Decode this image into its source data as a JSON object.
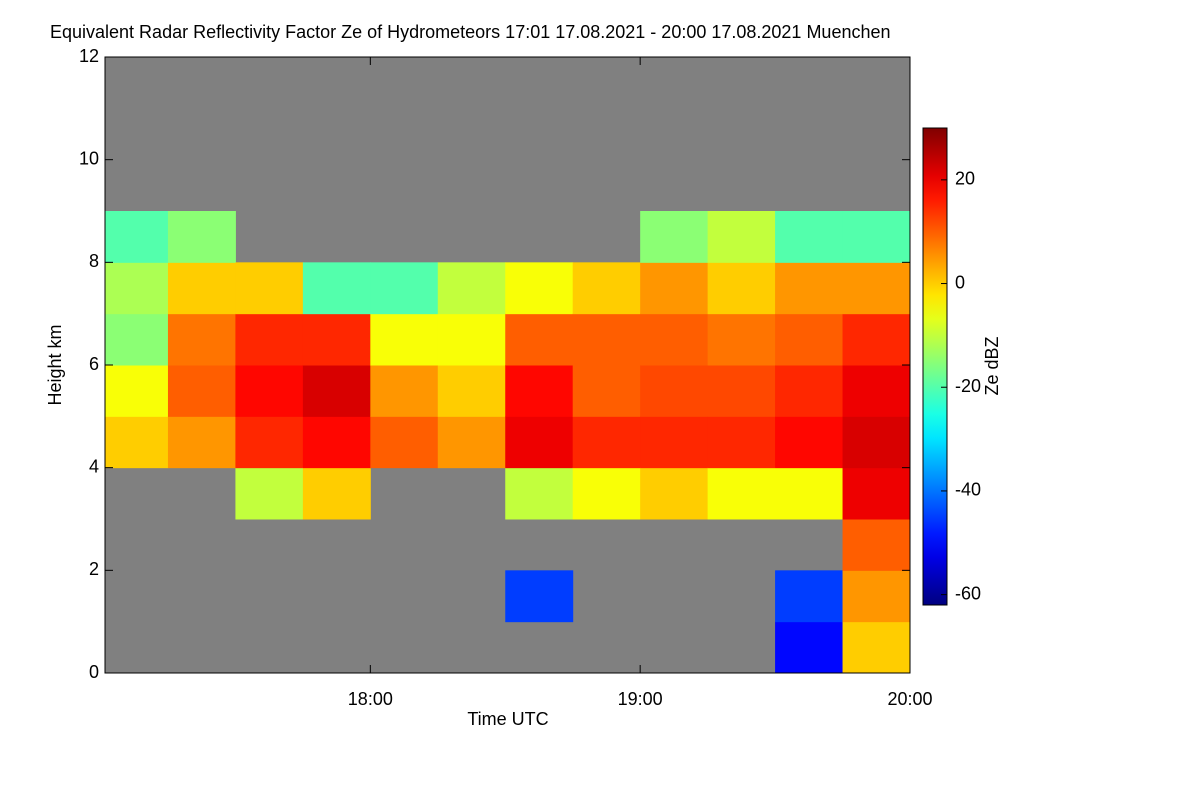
{
  "chart_data": {
    "type": "heatmap",
    "title": "Equivalent Radar Reflectivity Factor Ze of Hydrometeors   17:01 17.08.2021 - 20:00 17.08.2021 Muenchen",
    "xlabel": "Time UTC",
    "ylabel": "Height km",
    "colorbar_label": "Ze dBZ",
    "x": [
      17.125,
      17.375,
      17.625,
      17.875,
      18.125,
      18.375,
      18.625,
      18.875,
      19.125,
      19.375,
      19.625,
      19.875
    ],
    "y": [
      0.5,
      1.5,
      2.5,
      3.5,
      4.5,
      5.5,
      6.5,
      7.5,
      8.5,
      9.5
    ],
    "z": [
      [
        null,
        null,
        null,
        null,
        0,
        -5,
        -15,
        -12,
        -20,
        null
      ],
      [
        null,
        null,
        null,
        null,
        5,
        10,
        8,
        0,
        -15,
        null
      ],
      [
        null,
        null,
        null,
        -10,
        15,
        18,
        15,
        0,
        null,
        null
      ],
      [
        null,
        null,
        null,
        0,
        18,
        22,
        15,
        -20,
        null,
        null
      ],
      [
        null,
        null,
        null,
        null,
        10,
        5,
        -5,
        -20,
        null,
        null
      ],
      [
        null,
        null,
        null,
        null,
        5,
        0,
        -5,
        -10,
        null,
        null
      ],
      [
        null,
        -45,
        null,
        -10,
        20,
        18,
        10,
        -5,
        null,
        null
      ],
      [
        null,
        null,
        null,
        -5,
        15,
        10,
        10,
        0,
        null,
        null
      ],
      [
        null,
        null,
        null,
        0,
        15,
        12,
        10,
        5,
        -15,
        null
      ],
      [
        null,
        null,
        null,
        -5,
        15,
        12,
        8,
        0,
        -10,
        null
      ],
      [
        -50,
        -45,
        null,
        -5,
        18,
        15,
        10,
        5,
        -20,
        null
      ],
      [
        0,
        5,
        10,
        20,
        22,
        20,
        15,
        5,
        -20,
        null
      ]
    ],
    "xlim": [
      17.0167,
      20.0
    ],
    "xticks": [
      {
        "value": 18,
        "label": "18:00"
      },
      {
        "value": 19,
        "label": "19:00"
      },
      {
        "value": 20,
        "label": "20:00"
      }
    ],
    "ylim": [
      0,
      12
    ],
    "yticks": [
      0,
      2,
      4,
      6,
      8,
      10,
      12
    ],
    "clim": [
      -62,
      30
    ],
    "cticks": [
      -60,
      -40,
      -20,
      0,
      20
    ],
    "colormap": "jet",
    "nan_color": "#808080"
  }
}
